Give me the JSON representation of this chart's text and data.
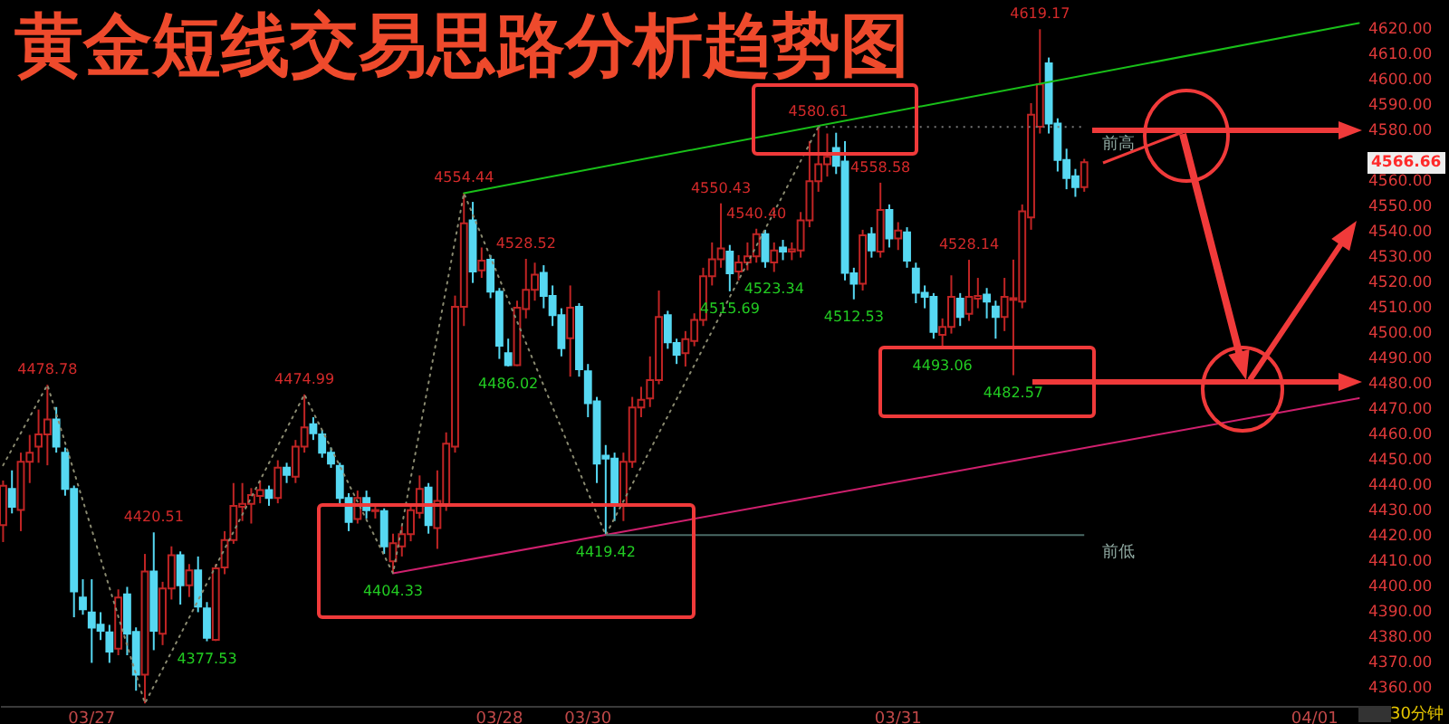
{
  "chart_data": {
    "type": "candlestick",
    "title": "黄金短线交易思路分析趋势图",
    "categories": [
      null,
      null,
      null,
      null,
      null,
      null,
      null,
      null,
      null,
      null,
      "03/27",
      null,
      null,
      null,
      null,
      null,
      null,
      null,
      null,
      null,
      null,
      null,
      null,
      null,
      null,
      null,
      null,
      null,
      null,
      null,
      null,
      null,
      null,
      null,
      null,
      null,
      null,
      null,
      null,
      null,
      null,
      null,
      null,
      null,
      null,
      null,
      null,
      null,
      null,
      null,
      null,
      null,
      null,
      null,
      null,
      null,
      "03/28",
      null,
      null,
      null,
      null,
      null,
      null,
      null,
      null,
      null,
      "03/30",
      null,
      null,
      null,
      null,
      null,
      null,
      null,
      null,
      null,
      null,
      null,
      null,
      null,
      null,
      null,
      null,
      null,
      null,
      null,
      null,
      null,
      null,
      null,
      null,
      null,
      null,
      null,
      null,
      null,
      null,
      null,
      null,
      null,
      null,
      "03/31",
      null,
      null,
      null,
      null,
      null,
      null,
      null,
      null,
      null,
      null,
      null,
      null,
      null,
      null,
      null,
      null,
      null,
      null,
      null,
      null,
      null,
      null,
      null,
      null,
      null,
      null,
      null,
      null,
      null,
      null,
      null,
      null,
      null,
      null,
      null,
      null,
      null,
      null,
      null,
      null,
      null,
      null,
      null,
      null,
      null,
      null,
      "04/01",
      null,
      null,
      null,
      null,
      null
    ],
    "ohlc": [
      [
        4423.4,
        4441.0,
        4416.69,
        4438.9
      ],
      [
        4437.7,
        4445.0,
        4428.0,
        4430.6
      ],
      [
        4429.4,
        4452.0,
        4421.0,
        4448.4
      ],
      [
        4448.4,
        4459.0,
        4440.0,
        4452.0
      ],
      [
        4454.4,
        4469.0,
        4448.0,
        4459.2
      ],
      [
        4459.2,
        4478.78,
        4447.0,
        4465.1
      ],
      [
        4465.1,
        4470.0,
        4452.0,
        4454.4
      ],
      [
        4452.0,
        4454.0,
        4435.0,
        4437.7
      ],
      [
        4437.7,
        4439.0,
        4387.0,
        4397.2
      ],
      [
        4394.8,
        4402.0,
        4388.0,
        4390.1
      ],
      [
        4388.9,
        4402.0,
        4369.0,
        4382.9
      ],
      [
        4384.1,
        4389.0,
        4378.0,
        4381.7
      ],
      [
        4381.0,
        4384.0,
        4369.0,
        4373.4
      ],
      [
        4374.6,
        4398.0,
        4372.0,
        4394.8
      ],
      [
        4396.0,
        4399.0,
        4372.0,
        4380.5
      ],
      [
        4381.2,
        4383.0,
        4358.0,
        4364.3
      ],
      [
        4364.3,
        4412.0,
        4353.0,
        4405.1
      ],
      [
        4405.1,
        4420.51,
        4374.0,
        4381.7
      ],
      [
        4380.5,
        4401.0,
        4376.0,
        4398.4
      ],
      [
        4398.4,
        4415.0,
        4394.0,
        4411.5
      ],
      [
        4411.5,
        4413.0,
        4392.0,
        4399.6
      ],
      [
        4399.6,
        4408.0,
        4395.0,
        4405.5
      ],
      [
        4405.5,
        4411.0,
        4389.0,
        4391.2
      ],
      [
        4390.5,
        4393.0,
        4377.53,
        4378.9
      ],
      [
        4378.1,
        4408.0,
        4377.6,
        4406.3
      ],
      [
        4406.7,
        4421.0,
        4404.0,
        4417.5
      ],
      [
        4417.5,
        4440.0,
        4416.0,
        4431.0
      ],
      [
        4430.6,
        4440.0,
        4425.0,
        4431.8
      ],
      [
        4431.8,
        4438.0,
        4424.0,
        4435.3
      ],
      [
        4434.9,
        4441.0,
        4432.0,
        4437.2
      ],
      [
        4437.2,
        4439.0,
        4431.0,
        4434.1
      ],
      [
        4434.1,
        4449.0,
        4432.0,
        4446.1
      ],
      [
        4446.1,
        4448.0,
        4440.0,
        4443.2
      ],
      [
        4442.5,
        4457.0,
        4440.0,
        4454.4
      ],
      [
        4454.4,
        4474.99,
        4452.0,
        4462.0
      ],
      [
        4463.2,
        4466.0,
        4457.0,
        4459.6
      ],
      [
        4459.2,
        4461.0,
        4450.0,
        4452.0
      ],
      [
        4452.0,
        4454.0,
        4446.0,
        4447.7
      ],
      [
        4446.8,
        4448.0,
        4432.0,
        4434.1
      ],
      [
        4434.1,
        4436.0,
        4421.0,
        4424.6
      ],
      [
        4425.8,
        4437.0,
        4424.0,
        4434.1
      ],
      [
        4434.1,
        4437.0,
        4426.0,
        4429.3
      ],
      [
        4428.9,
        4432.0,
        4426.0,
        4429.3
      ],
      [
        4428.9,
        4430.0,
        4412.0,
        4415.0
      ],
      [
        4409.1,
        4420.0,
        4404.33,
        4416.2
      ],
      [
        4415.0,
        4423.0,
        4411.0,
        4419.8
      ],
      [
        4419.8,
        4432.0,
        4417.0,
        4429.3
      ],
      [
        4428.2,
        4443.0,
        4426.0,
        4437.7
      ],
      [
        4438.2,
        4440.0,
        4420.0,
        4423.4
      ],
      [
        4422.2,
        4445.0,
        4414.0,
        4432.9
      ],
      [
        4431.7,
        4460.0,
        4429.0,
        4455.5
      ],
      [
        4454.4,
        4514.0,
        4452.0,
        4509.6
      ],
      [
        4509.6,
        4554.44,
        4502.0,
        4542.5
      ],
      [
        4543.7,
        4551.0,
        4519.0,
        4523.5
      ],
      [
        4524.0,
        4533.0,
        4521.0,
        4527.8
      ],
      [
        4528.2,
        4530.0,
        4513.0,
        4515.6
      ],
      [
        4515.6,
        4517.0,
        4489.0,
        4494.2
      ],
      [
        4491.3,
        4497.0,
        4486.02,
        4486.5
      ],
      [
        4486.5,
        4512.0,
        4486.2,
        4509.2
      ],
      [
        4508.7,
        4528.52,
        4505.0,
        4516.3
      ],
      [
        4516.3,
        4527.0,
        4512.0,
        4522.3
      ],
      [
        4523.0,
        4526.0,
        4509.0,
        4513.9
      ],
      [
        4513.9,
        4518.0,
        4502.0,
        4506.3
      ],
      [
        4506.3,
        4509.0,
        4490.0,
        4493.2
      ],
      [
        4497.2,
        4518.0,
        4482.0,
        4509.2
      ],
      [
        4509.6,
        4511.0,
        4482.0,
        4484.9
      ],
      [
        4484.1,
        4487.0,
        4466.0,
        4471.5
      ],
      [
        4472.2,
        4474.0,
        4440.0,
        4447.7
      ],
      [
        4450.8,
        4455.0,
        4419.42,
        4449.6
      ],
      [
        4449.6,
        4452.0,
        4425.0,
        4431.7
      ],
      [
        4431.7,
        4452.0,
        4425.0,
        4448.4
      ],
      [
        4448.4,
        4474.0,
        4446.0,
        4469.8
      ],
      [
        4469.8,
        4478.0,
        4466.0,
        4472.9
      ],
      [
        4473.4,
        4490.0,
        4470.0,
        4480.6
      ],
      [
        4480.6,
        4516.0,
        4479.0,
        4505.6
      ],
      [
        4506.3,
        4508.0,
        4493.0,
        4495.6
      ],
      [
        4495.3,
        4497.0,
        4487.0,
        4490.6
      ],
      [
        4491.3,
        4500.0,
        4486.0,
        4496.8
      ],
      [
        4496.1,
        4507.0,
        4494.0,
        4504.4
      ],
      [
        4504.4,
        4525.0,
        4502.0,
        4521.6
      ],
      [
        4521.6,
        4535.0,
        4518.0,
        4528.3
      ],
      [
        4528.3,
        4550.43,
        4525.0,
        4532.6
      ],
      [
        4531.4,
        4534.0,
        4515.69,
        4522.8
      ],
      [
        4523.5,
        4530.0,
        4520.0,
        4527.1
      ],
      [
        4527.1,
        4535.0,
        4524.0,
        4529.5
      ],
      [
        4529.5,
        4540.4,
        4527.0,
        4538.3
      ],
      [
        4538.3,
        4540.0,
        4525.0,
        4527.5
      ],
      [
        4527.1,
        4535.0,
        4523.34,
        4531.8
      ],
      [
        4533.0,
        4536.0,
        4528.0,
        4531.4
      ],
      [
        4531.4,
        4535.0,
        4528.0,
        4532.3
      ],
      [
        4531.8,
        4547.0,
        4529.0,
        4543.7
      ],
      [
        4543.7,
        4575.0,
        4541.0,
        4559.2
      ],
      [
        4559.2,
        4580.61,
        4555.0,
        4565.9
      ],
      [
        4565.9,
        4578.0,
        4561.0,
        4568.8
      ],
      [
        4572.3,
        4578.3,
        4562.0,
        4565.2
      ],
      [
        4566.9,
        4575.0,
        4520.0,
        4523.0
      ],
      [
        4522.8,
        4525.0,
        4512.53,
        4518.7
      ],
      [
        4518.7,
        4540.0,
        4516.0,
        4537.8
      ],
      [
        4538.3,
        4541.0,
        4529.0,
        4531.8
      ],
      [
        4531.4,
        4558.58,
        4529.0,
        4547.8
      ],
      [
        4547.8,
        4550.0,
        4533.0,
        4536.6
      ],
      [
        4536.6,
        4543.0,
        4532.0,
        4539.7
      ],
      [
        4539.0,
        4541.0,
        4525.0,
        4527.8
      ],
      [
        4524.7,
        4527.0,
        4511.0,
        4515.1
      ],
      [
        4515.1,
        4518.0,
        4509.0,
        4513.5
      ],
      [
        4513.5,
        4515.0,
        4497.0,
        4499.7
      ],
      [
        4498.5,
        4505.0,
        4493.06,
        4501.6
      ],
      [
        4501.6,
        4522.0,
        4499.0,
        4513.5
      ],
      [
        4512.8,
        4515.0,
        4502.0,
        4505.6
      ],
      [
        4506.8,
        4528.14,
        4504.0,
        4513.5
      ],
      [
        4512.8,
        4521.0,
        4509.0,
        4513.9
      ],
      [
        4514.4,
        4517.0,
        4505.0,
        4511.6
      ],
      [
        4509.7,
        4512.0,
        4497.0,
        4505.6
      ],
      [
        4505.6,
        4521.0,
        4500.0,
        4513.5
      ],
      [
        4512.3,
        4528.2,
        4482.57,
        4513.0
      ],
      [
        4511.6,
        4550.0,
        4509.0,
        4547.3
      ],
      [
        4544.9,
        4590.0,
        4540.0,
        4585.4
      ],
      [
        4580.7,
        4619.17,
        4578.0,
        4597.4
      ],
      [
        4605.7,
        4608.0,
        4578.0,
        4581.9
      ],
      [
        4581.9,
        4584.0,
        4563.0,
        4567.6
      ],
      [
        4567.6,
        4572.0,
        4556.0,
        4560.4
      ],
      [
        4561.1,
        4564.0,
        4553.0,
        4556.8
      ],
      [
        4556.8,
        4568.0,
        4555.0,
        4566.66
      ],
      null,
      null,
      null,
      null,
      null,
      null,
      null,
      null,
      null,
      null,
      null,
      null,
      null,
      null,
      null,
      null,
      null,
      null,
      null,
      null,
      null,
      null,
      null,
      null,
      null,
      null,
      null,
      null,
      null,
      null,
      null
    ],
    "series": [
      {
        "type": "line",
        "color": "#19c019",
        "line_style": "solid",
        "values": [
          null,
          null,
          null,
          null,
          null,
          null,
          null,
          null,
          null,
          null,
          null,
          null,
          null,
          null,
          null,
          null,
          null,
          null,
          null,
          null,
          null,
          null,
          null,
          null,
          null,
          null,
          null,
          null,
          null,
          null,
          null,
          null,
          null,
          null,
          null,
          null,
          null,
          null,
          null,
          null,
          null,
          null,
          null,
          null,
          null,
          null,
          null,
          null,
          null,
          null,
          null,
          null,
          4554.44,
          null,
          null,
          null,
          null,
          null,
          null,
          null,
          null,
          null,
          null,
          null,
          null,
          null,
          null,
          null,
          null,
          null,
          null,
          null,
          null,
          null,
          null,
          null,
          null,
          null,
          null,
          null,
          null,
          null,
          null,
          null,
          null,
          null,
          null,
          null,
          null,
          null,
          null,
          null,
          null,
          null,
          null,
          null,
          null,
          null,
          null,
          null,
          null,
          null,
          null,
          null,
          null,
          null,
          null,
          null,
          null,
          null,
          null,
          null,
          null,
          null,
          null,
          null,
          null,
          null,
          null,
          null,
          null,
          null,
          null,
          null,
          null,
          null,
          null,
          null,
          null,
          null,
          null,
          null,
          null,
          null,
          null,
          null,
          null,
          null,
          null,
          null,
          null,
          null,
          null,
          null,
          null,
          null,
          null,
          null,
          null,
          null,
          null,
          null,
          null,
          4621.6
        ]
      },
      {
        "type": "line",
        "color": "#d0206e",
        "line_style": "solid",
        "values": [
          null,
          null,
          null,
          null,
          null,
          null,
          null,
          null,
          null,
          null,
          null,
          null,
          null,
          null,
          null,
          null,
          null,
          null,
          null,
          null,
          null,
          null,
          null,
          null,
          null,
          null,
          null,
          null,
          null,
          null,
          null,
          null,
          null,
          null,
          null,
          null,
          null,
          null,
          null,
          null,
          null,
          null,
          null,
          null,
          4404.33,
          null,
          null,
          null,
          null,
          null,
          null,
          null,
          null,
          null,
          null,
          null,
          null,
          null,
          null,
          null,
          null,
          null,
          null,
          null,
          null,
          null,
          null,
          null,
          null,
          null,
          null,
          null,
          null,
          null,
          null,
          null,
          null,
          null,
          null,
          null,
          null,
          null,
          null,
          null,
          null,
          null,
          null,
          null,
          null,
          null,
          null,
          null,
          null,
          null,
          null,
          null,
          null,
          null,
          null,
          null,
          null,
          null,
          null,
          null,
          null,
          null,
          null,
          null,
          null,
          null,
          null,
          null,
          null,
          null,
          null,
          null,
          null,
          null,
          null,
          null,
          null,
          null,
          null,
          null,
          null,
          null,
          null,
          null,
          null,
          null,
          null,
          null,
          null,
          null,
          null,
          null,
          null,
          null,
          null,
          null,
          null,
          null,
          null,
          null,
          null,
          null,
          null,
          null,
          null,
          null,
          null,
          null,
          null,
          4473.5
        ]
      },
      {
        "type": "line",
        "color": "#8a8a70",
        "line_style": "dotted",
        "values": [
          4447,
          null,
          null,
          null,
          null,
          4478.78,
          null,
          null,
          null,
          null,
          null,
          null,
          null,
          null,
          null,
          null,
          4353,
          null,
          null,
          null,
          null,
          null,
          null,
          null,
          null,
          null,
          null,
          null,
          null,
          null,
          null,
          null,
          null,
          null,
          4474.99,
          null,
          null,
          null,
          null,
          null,
          null,
          null,
          null,
          null,
          4404.33,
          null,
          null,
          null,
          null,
          null,
          null,
          null,
          4554.44,
          null,
          null,
          null,
          null,
          null,
          null,
          null,
          null,
          null,
          null,
          null,
          null,
          null,
          null,
          null,
          4419.42,
          null,
          null,
          null,
          null,
          null,
          null,
          null,
          null,
          null,
          null,
          null,
          null,
          null,
          null,
          null,
          null,
          null,
          null,
          null,
          null,
          null,
          null,
          null,
          4580.61,
          null,
          null,
          null,
          null,
          null,
          null,
          null,
          null,
          null,
          null,
          null,
          null,
          null,
          null,
          null,
          null,
          null,
          null,
          null,
          null,
          null,
          null,
          null,
          null,
          null,
          null,
          null,
          null,
          null,
          null,
          null,
          null,
          null,
          null,
          null,
          null,
          null,
          null,
          null,
          null,
          null,
          null,
          null,
          null,
          null,
          null,
          null,
          null,
          null,
          null,
          null,
          null,
          null,
          null,
          null,
          null,
          null,
          null,
          null,
          null,
          null
        ]
      }
    ],
    "ref_lines": [
      {
        "axis": "y",
        "value": 4419.42,
        "label": "前低",
        "color": "#4a6a66",
        "line_style": "solid"
      },
      {
        "axis": "y",
        "value": 4580.61,
        "label": "前高",
        "color": "#777777",
        "line_style": "dotted"
      }
    ],
    "annotations": [
      {
        "text": "4478.78",
        "y": 4478.78
      },
      {
        "text": "4420.51",
        "y": 4420.51
      },
      {
        "text": "4377.53",
        "y": 4377.53
      },
      {
        "text": "4474.99",
        "y": 4474.99
      },
      {
        "text": "4404.33",
        "y": 4404.33
      },
      {
        "text": "4554.44",
        "y": 4554.44
      },
      {
        "text": "4528.52",
        "y": 4528.52
      },
      {
        "text": "4486.02",
        "y": 4486.02
      },
      {
        "text": "4419.42",
        "y": 4419.42
      },
      {
        "text": "4550.43",
        "y": 4550.43
      },
      {
        "text": "4515.69",
        "y": 4515.69
      },
      {
        "text": "4540.40",
        "y": 4540.4
      },
      {
        "text": "4523.34",
        "y": 4523.34
      },
      {
        "text": "4580.61",
        "y": 4580.61
      },
      {
        "text": "4558.58",
        "y": 4558.58
      },
      {
        "text": "4512.53",
        "y": 4512.53
      },
      {
        "text": "4528.14",
        "y": 4528.14
      },
      {
        "text": "4493.06",
        "y": 4493.06
      },
      {
        "text": "4482.57",
        "y": 4482.57
      },
      {
        "text": "4619.17",
        "y": 4619.17
      },
      "4566.66",
      "30分钟"
    ],
    "ylim": [
      4352,
      4630
    ],
    "yticks": [
      {
        "value": 4360,
        "label": "4360.00"
      },
      {
        "value": 4370,
        "label": "4370.00"
      },
      {
        "value": 4380,
        "label": "4380.00"
      },
      {
        "value": 4390,
        "label": "4390.00"
      },
      {
        "value": 4400,
        "label": "4400.00"
      },
      {
        "value": 4410,
        "label": "4410.00"
      },
      {
        "value": 4420,
        "label": "4420.00"
      },
      {
        "value": 4430,
        "label": "4430.00"
      },
      {
        "value": 4440,
        "label": "4440.00"
      },
      {
        "value": 4450,
        "label": "4450.00"
      },
      {
        "value": 4460,
        "label": "4460.00"
      },
      {
        "value": 4470,
        "label": "4470.00"
      },
      {
        "value": 4480,
        "label": "4480.00"
      },
      {
        "value": 4490,
        "label": "4490.00"
      },
      {
        "value": 4500,
        "label": "4500.00"
      },
      {
        "value": 4510,
        "label": "4510.00"
      },
      {
        "value": 4520,
        "label": "4520.00"
      },
      {
        "value": 4530,
        "label": "4530.00"
      },
      {
        "value": 4540,
        "label": "4540.00"
      },
      {
        "value": 4550,
        "label": "4550.00"
      },
      {
        "value": 4560,
        "label": "4560.00"
      },
      {
        "value": 4580,
        "label": "4580.00"
      },
      {
        "value": 4590,
        "label": "4590.00"
      },
      {
        "value": 4600,
        "label": "4600.00"
      },
      {
        "value": 4610,
        "label": "4610.00"
      },
      {
        "value": 4620,
        "label": "4620.00"
      }
    ]
  }
}
